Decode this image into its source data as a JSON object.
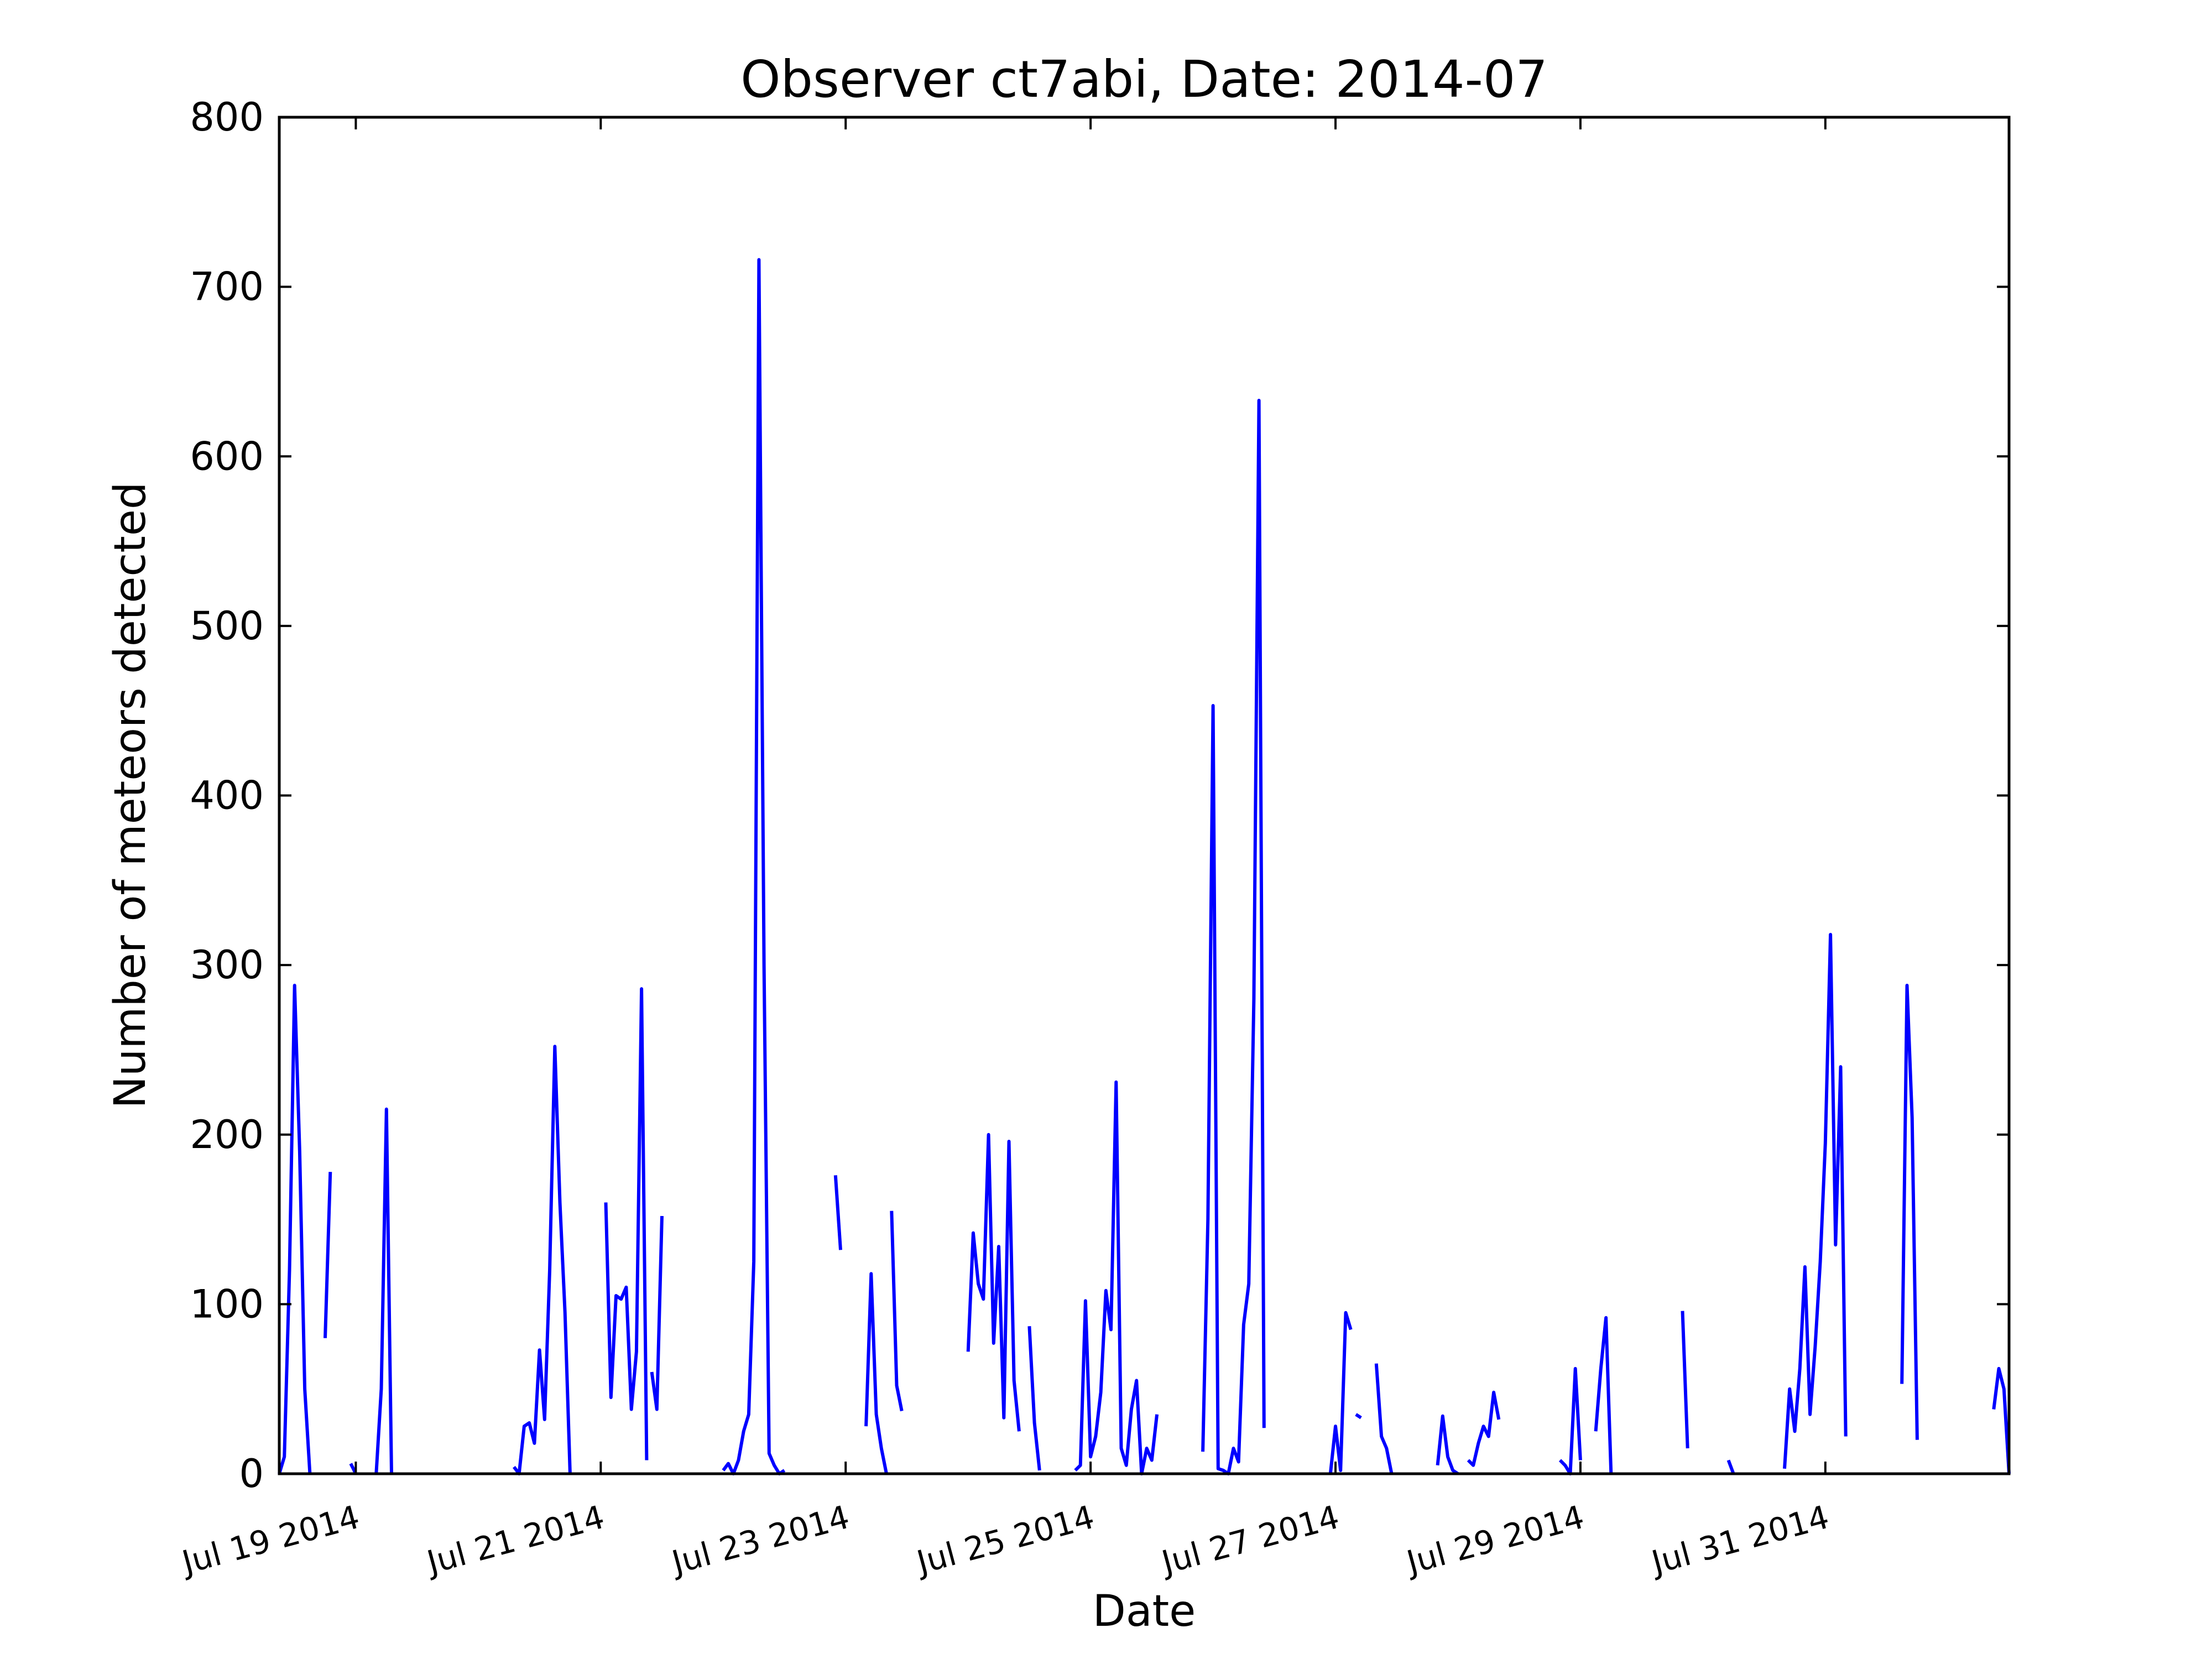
{
  "chart_data": {
    "type": "line",
    "title": "Observer ct7abi, Date: 2014-07",
    "xlabel": "Date",
    "ylabel": "Number of meteors detected",
    "xlim": [
      "2014-07-18T09:00",
      "2014-08-01T12:00"
    ],
    "ylim": [
      0,
      800
    ],
    "yticks": [
      0,
      100,
      200,
      300,
      400,
      500,
      600,
      700,
      800
    ],
    "xticks": [
      {
        "date": "2014-07-19T00:00",
        "label": "Jul 19 2014"
      },
      {
        "date": "2014-07-21T00:00",
        "label": "Jul 21 2014"
      },
      {
        "date": "2014-07-23T00:00",
        "label": "Jul 23 2014"
      },
      {
        "date": "2014-07-25T00:00",
        "label": "Jul 25 2014"
      },
      {
        "date": "2014-07-27T00:00",
        "label": "Jul 27 2014"
      },
      {
        "date": "2014-07-29T00:00",
        "label": "Jul 29 2014"
      },
      {
        "date": "2014-07-31T00:00",
        "label": "Jul 31 2014"
      }
    ],
    "grid": false,
    "line_color": "#0000ff",
    "series": [
      {
        "segments": [
          [
            [
              "2014-07-18T09:00",
              0
            ],
            [
              "2014-07-18T10:00",
              10
            ],
            [
              "2014-07-18T11:00",
              120
            ],
            [
              "2014-07-18T12:00",
              288
            ],
            [
              "2014-07-18T13:00",
              190
            ],
            [
              "2014-07-18T14:00",
              50
            ],
            [
              "2014-07-18T15:00",
              0
            ]
          ],
          [
            [
              "2014-07-18T18:00",
              80
            ],
            [
              "2014-07-18T19:00",
              178
            ]
          ],
          [
            [
              "2014-07-18T23:00",
              6
            ],
            [
              "2014-07-19T00:00",
              0
            ]
          ],
          [
            [
              "2014-07-19T04:00",
              0
            ],
            [
              "2014-07-19T05:00",
              50
            ],
            [
              "2014-07-19T06:00",
              215
            ],
            [
              "2014-07-19T07:00",
              0
            ]
          ],
          [
            [
              "2014-07-20T07:00",
              4
            ],
            [
              "2014-07-20T08:00",
              0
            ],
            [
              "2014-07-20T09:00",
              28
            ],
            [
              "2014-07-20T10:00",
              30
            ],
            [
              "2014-07-20T11:00",
              18
            ],
            [
              "2014-07-20T12:00",
              73
            ],
            [
              "2014-07-20T13:00",
              32
            ],
            [
              "2014-07-20T14:00",
              120
            ],
            [
              "2014-07-20T15:00",
              252
            ],
            [
              "2014-07-20T16:00",
              160
            ],
            [
              "2014-07-20T17:00",
              95
            ],
            [
              "2014-07-20T18:00",
              0
            ]
          ],
          [
            [
              "2014-07-21T01:00",
              160
            ],
            [
              "2014-07-21T02:00",
              45
            ],
            [
              "2014-07-21T03:00",
              105
            ],
            [
              "2014-07-21T04:00",
              103
            ],
            [
              "2014-07-21T05:00",
              110
            ],
            [
              "2014-07-21T06:00",
              38
            ],
            [
              "2014-07-21T07:00",
              72
            ],
            [
              "2014-07-21T08:00",
              286
            ],
            [
              "2014-07-21T09:00",
              8
            ]
          ],
          [
            [
              "2014-07-21T10:00",
              60
            ],
            [
              "2014-07-21T11:00",
              38
            ],
            [
              "2014-07-21T12:00",
              152
            ]
          ],
          [
            [
              "2014-07-22T00:00",
              2
            ],
            [
              "2014-07-22T01:00",
              6
            ],
            [
              "2014-07-22T02:00",
              0
            ],
            [
              "2014-07-22T03:00",
              8
            ],
            [
              "2014-07-22T04:00",
              25
            ],
            [
              "2014-07-22T05:00",
              35
            ],
            [
              "2014-07-22T06:00",
              125
            ],
            [
              "2014-07-22T07:00",
              716
            ],
            [
              "2014-07-22T08:00",
              300
            ],
            [
              "2014-07-22T09:00",
              12
            ],
            [
              "2014-07-22T10:00",
              5
            ],
            [
              "2014-07-22T11:00",
              0
            ],
            [
              "2014-07-22T12:00",
              2
            ]
          ],
          [
            [
              "2014-07-22T22:00",
              176
            ],
            [
              "2014-07-22T23:00",
              132
            ]
          ],
          [
            [
              "2014-07-23T04:00",
              28
            ],
            [
              "2014-07-23T05:00",
              118
            ],
            [
              "2014-07-23T06:00",
              35
            ],
            [
              "2014-07-23T07:00",
              15
            ],
            [
              "2014-07-23T08:00",
              0
            ]
          ],
          [
            [
              "2014-07-23T09:00",
              155
            ],
            [
              "2014-07-23T10:00",
              52
            ],
            [
              "2014-07-23T11:00",
              37
            ]
          ],
          [
            [
              "2014-07-24T00:00",
              72
            ],
            [
              "2014-07-24T01:00",
              142
            ],
            [
              "2014-07-24T02:00",
              112
            ],
            [
              "2014-07-24T03:00",
              103
            ],
            [
              "2014-07-24T04:00",
              200
            ],
            [
              "2014-07-24T05:00",
              77
            ],
            [
              "2014-07-24T06:00",
              134
            ],
            [
              "2014-07-24T07:00",
              33
            ],
            [
              "2014-07-24T08:00",
              196
            ],
            [
              "2014-07-24T09:00",
              55
            ],
            [
              "2014-07-24T10:00",
              25
            ]
          ],
          [
            [
              "2014-07-24T12:00",
              87
            ],
            [
              "2014-07-24T13:00",
              30
            ],
            [
              "2014-07-24T14:00",
              2
            ]
          ],
          [
            [
              "2014-07-24T21:00",
              2
            ],
            [
              "2014-07-24T22:00",
              5
            ],
            [
              "2014-07-24T23:00",
              102
            ],
            [
              "2014-07-25T00:00",
              10
            ],
            [
              "2014-07-25T01:00",
              22
            ],
            [
              "2014-07-25T02:00",
              48
            ],
            [
              "2014-07-25T03:00",
              108
            ],
            [
              "2014-07-25T04:00",
              85
            ],
            [
              "2014-07-25T05:00",
              231
            ],
            [
              "2014-07-25T06:00",
              15
            ],
            [
              "2014-07-25T07:00",
              5
            ],
            [
              "2014-07-25T08:00",
              38
            ],
            [
              "2014-07-25T09:00",
              55
            ],
            [
              "2014-07-25T10:00",
              0
            ],
            [
              "2014-07-25T11:00",
              15
            ],
            [
              "2014-07-25T12:00",
              8
            ],
            [
              "2014-07-25T13:00",
              35
            ]
          ],
          [
            [
              "2014-07-25T22:00",
              13
            ],
            [
              "2014-07-25T23:00",
              150
            ],
            [
              "2014-07-26T00:00",
              453
            ],
            [
              "2014-07-26T01:00",
              3
            ],
            [
              "2014-07-26T02:00",
              2
            ],
            [
              "2014-07-26T03:00",
              0
            ],
            [
              "2014-07-26T04:00",
              15
            ],
            [
              "2014-07-26T05:00",
              7
            ],
            [
              "2014-07-26T06:00",
              88
            ],
            [
              "2014-07-26T07:00",
              112
            ],
            [
              "2014-07-26T08:00",
              280
            ],
            [
              "2014-07-26T09:00",
              633
            ],
            [
              "2014-07-26T10:00",
              27
            ]
          ],
          [
            [
              "2014-07-26T23:00",
              0
            ],
            [
              "2014-07-27T00:00",
              28
            ],
            [
              "2014-07-27T01:00",
              2
            ],
            [
              "2014-07-27T02:00",
              95
            ],
            [
              "2014-07-27T03:00",
              85
            ]
          ],
          [
            [
              "2014-07-27T04:00",
              35
            ],
            [
              "2014-07-27T05:00",
              33
            ]
          ],
          [
            [
              "2014-07-27T08:00",
              65
            ],
            [
              "2014-07-27T09:00",
              22
            ],
            [
              "2014-07-27T10:00",
              15
            ],
            [
              "2014-07-27T11:00",
              0
            ]
          ],
          [
            [
              "2014-07-27T20:00",
              5
            ],
            [
              "2014-07-27T21:00",
              34
            ],
            [
              "2014-07-27T22:00",
              10
            ],
            [
              "2014-07-27T23:00",
              2
            ],
            [
              "2014-07-28T00:00",
              0
            ]
          ],
          [
            [
              "2014-07-28T02:00",
              8
            ],
            [
              "2014-07-28T03:00",
              5
            ],
            [
              "2014-07-28T04:00",
              18
            ],
            [
              "2014-07-28T05:00",
              28
            ],
            [
              "2014-07-28T06:00",
              22
            ],
            [
              "2014-07-28T07:00",
              48
            ],
            [
              "2014-07-28T08:00",
              32
            ]
          ],
          [
            [
              "2014-07-28T20:00",
              8
            ],
            [
              "2014-07-28T21:00",
              5
            ],
            [
              "2014-07-28T22:00",
              0
            ],
            [
              "2014-07-28T23:00",
              62
            ],
            [
              "2014-07-29T00:00",
              8
            ]
          ],
          [
            [
              "2014-07-29T03:00",
              25
            ],
            [
              "2014-07-29T04:00",
              62
            ],
            [
              "2014-07-29T05:00",
              92
            ],
            [
              "2014-07-29T06:00",
              0
            ]
          ],
          [
            [
              "2014-07-29T20:00",
              96
            ],
            [
              "2014-07-29T21:00",
              15
            ]
          ],
          [
            [
              "2014-07-30T05:00",
              8
            ],
            [
              "2014-07-30T06:00",
              0
            ]
          ],
          [
            [
              "2014-07-30T16:00",
              3
            ],
            [
              "2014-07-30T17:00",
              50
            ],
            [
              "2014-07-30T18:00",
              25
            ],
            [
              "2014-07-30T19:00",
              62
            ],
            [
              "2014-07-30T20:00",
              122
            ],
            [
              "2014-07-30T21:00",
              35
            ],
            [
              "2014-07-30T22:00",
              75
            ],
            [
              "2014-07-30T23:00",
              125
            ],
            [
              "2014-07-31T00:00",
              195
            ],
            [
              "2014-07-31T01:00",
              318
            ],
            [
              "2014-07-31T02:00",
              135
            ],
            [
              "2014-07-31T03:00",
              240
            ],
            [
              "2014-07-31T04:00",
              22
            ]
          ],
          [
            [
              "2014-07-31T15:00",
              53
            ],
            [
              "2014-07-31T16:00",
              288
            ],
            [
              "2014-07-31T17:00",
              210
            ],
            [
              "2014-07-31T18:00",
              20
            ]
          ],
          [
            [
              "2014-08-01T09:00",
              38
            ],
            [
              "2014-08-01T10:00",
              62
            ],
            [
              "2014-08-01T11:00",
              50
            ],
            [
              "2014-08-01T12:00",
              0
            ]
          ]
        ]
      }
    ]
  }
}
